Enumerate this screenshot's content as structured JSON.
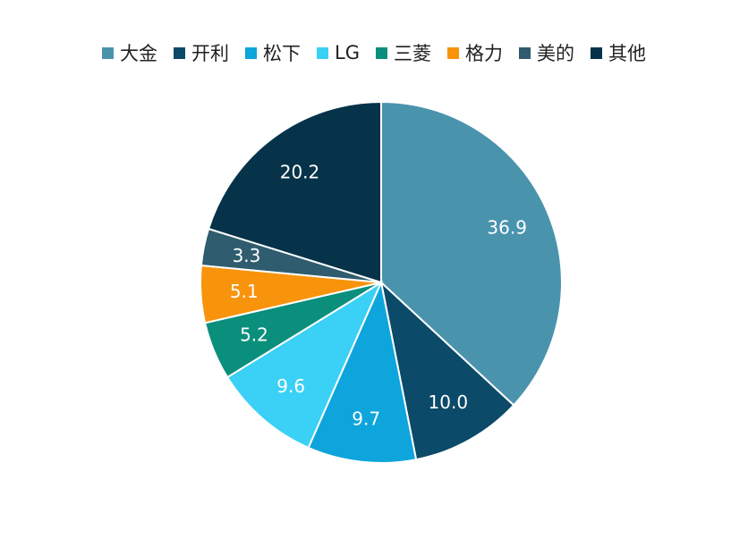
{
  "chart_data": {
    "type": "pie",
    "title": "",
    "categories": [
      "大金",
      "开利",
      "松下",
      "LG",
      "三菱",
      "格力",
      "美的",
      "其他"
    ],
    "values": [
      36.9,
      10.0,
      9.7,
      9.6,
      5.2,
      5.1,
      3.3,
      20.2
    ],
    "value_labels": [
      "36.9",
      "10.0",
      "9.7",
      "9.6",
      "5.2",
      "5.1",
      "3.3",
      "20.2"
    ],
    "colors": [
      "#4a93ad",
      "#0b4a68",
      "#0ea5dd",
      "#3bd0f5",
      "#0b8f7d",
      "#f8930c",
      "#2f5c6e",
      "#06334a"
    ],
    "legend_position": "top",
    "start_angle": "12 o'clock",
    "direction": "clockwise"
  }
}
